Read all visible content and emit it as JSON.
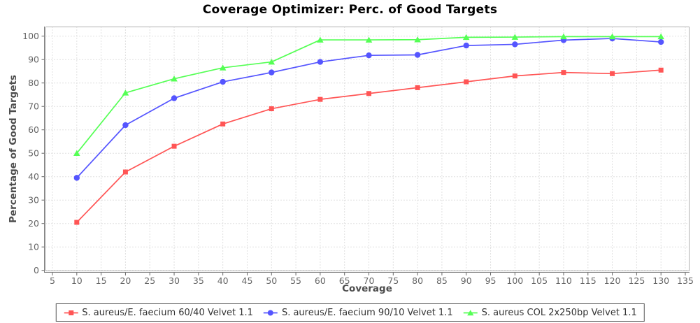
{
  "chart_data": {
    "type": "line",
    "title": "Coverage Optimizer: Perc. of Good Targets",
    "xlabel": "Coverage",
    "ylabel": "Percentage of Good Targets",
    "x": [
      10,
      20,
      30,
      40,
      50,
      60,
      70,
      80,
      90,
      100,
      110,
      120,
      130
    ],
    "xlim": [
      5,
      135
    ],
    "ylim": [
      0,
      100
    ],
    "x_ticks": [
      5,
      10,
      15,
      20,
      25,
      30,
      35,
      40,
      45,
      50,
      55,
      60,
      65,
      70,
      75,
      80,
      85,
      90,
      95,
      100,
      105,
      110,
      115,
      120,
      125,
      130,
      135
    ],
    "y_ticks": [
      0,
      10,
      20,
      30,
      40,
      50,
      60,
      70,
      80,
      90,
      100
    ],
    "grid": "dashed",
    "legend_position": "bottom",
    "series": [
      {
        "name": "S. aureus/E. faecium 60/40 Velvet 1.1",
        "color": "#ff5555",
        "marker": "square",
        "values": [
          20.5,
          42,
          53,
          62.5,
          69,
          73,
          75.5,
          78,
          80.5,
          83,
          84.5,
          84,
          85.5
        ]
      },
      {
        "name": "S. aureus/E. faecium 90/10 Velvet 1.1",
        "color": "#5555ff",
        "marker": "circle",
        "values": [
          39.5,
          62,
          73.5,
          80.5,
          84.5,
          89,
          91.8,
          92,
          96,
          96.5,
          98.3,
          99,
          97.5
        ]
      },
      {
        "name": "S. aureus COL 2x250bp Velvet 1.1",
        "color": "#55ff55",
        "marker": "triangle",
        "values": [
          50,
          75.8,
          81.8,
          86.5,
          89,
          98.4,
          98.4,
          98.5,
          99.5,
          99.6,
          99.8,
          99.8,
          99.8
        ]
      }
    ],
    "colors": {
      "grid": "#e0e0e0",
      "plot_border": "#b0b0b0",
      "axis_line": "#777777",
      "tick": "#666666",
      "tick_label": "#666666",
      "title": "#000000",
      "axis_label": "#4d4d4d",
      "legend_border": "#555555",
      "legend_text": "#333333",
      "background": "#ffffff"
    }
  }
}
